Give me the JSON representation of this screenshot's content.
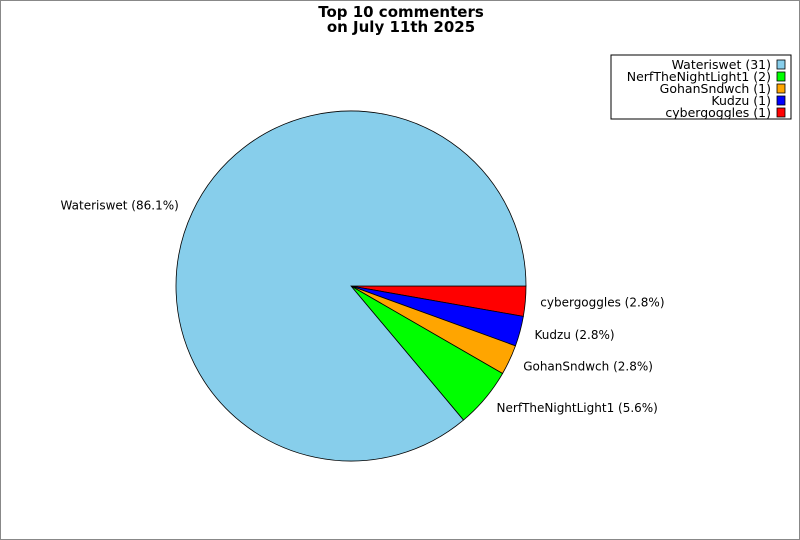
{
  "chart_data": {
    "type": "pie",
    "title_lines": [
      "Top 10 commenters",
      "on July 11th 2025"
    ],
    "slices": [
      {
        "name": "Wateriswet",
        "value": 31,
        "percent_label": "Wateriswet (86.1%)",
        "legend_label": "Wateriswet (31)",
        "color": "#87ceeb"
      },
      {
        "name": "NerfTheNightLight1",
        "value": 2,
        "percent_label": "NerfTheNightLight1 (5.6%)",
        "legend_label": "NerfTheNightLight1 (2)",
        "color": "#00ff00"
      },
      {
        "name": "GohanSndwch",
        "value": 1,
        "percent_label": "GohanSndwch (2.8%)",
        "legend_label": "GohanSndwch (1)",
        "color": "#ffa500"
      },
      {
        "name": "Kudzu",
        "value": 1,
        "percent_label": "Kudzu (2.8%)",
        "legend_label": "Kudzu (1)",
        "color": "#0000ff"
      },
      {
        "name": "cybergoggles",
        "value": 1,
        "percent_label": "cybergoggles (2.8%)",
        "legend_label": "cybergoggles (1)",
        "color": "#ff0000"
      }
    ],
    "legend_position": "top-right"
  }
}
